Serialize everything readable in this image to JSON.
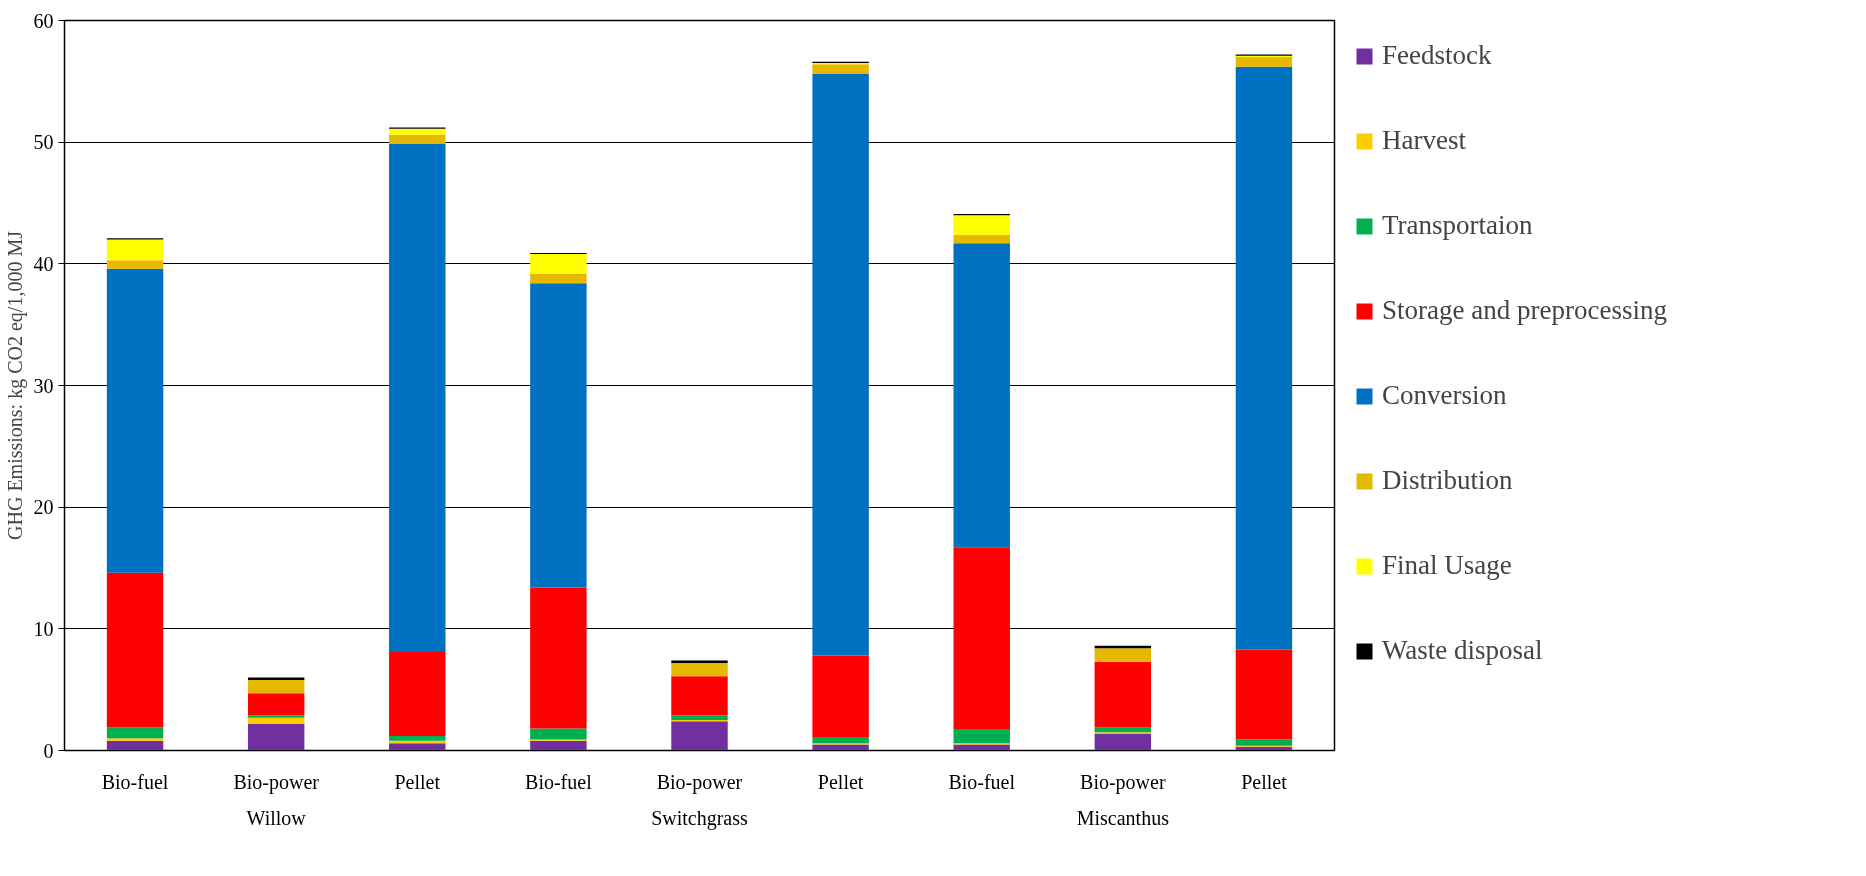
{
  "chart_data": {
    "type": "bar",
    "stacked": true,
    "ylabel": "GHG Emissions: kg CO2 eq/1,000 MJ",
    "categories": [
      "Bio-fuel",
      "Bio-power",
      "Pellet",
      "Bio-fuel",
      "Bio-power",
      "Pellet",
      "Bio-fuel",
      "Bio-power",
      "Pellet"
    ],
    "annotations": [
      "Willow",
      "Switchgrass",
      "Miscanthus"
    ],
    "series": [
      {
        "name": "Feedstock",
        "color": "#7030a0",
        "values": [
          0.8,
          2.2,
          0.6,
          0.8,
          2.4,
          0.5,
          0.5,
          1.4,
          0.3
        ]
      },
      {
        "name": "Harvest",
        "color": "#ffcc00",
        "values": [
          0.2,
          0.5,
          0.2,
          0.1,
          0.1,
          0.1,
          0.1,
          0.1,
          0.1
        ]
      },
      {
        "name": "Transportaion",
        "color": "#00b050",
        "values": [
          0.9,
          0.2,
          0.4,
          0.9,
          0.4,
          0.5,
          1.1,
          0.4,
          0.5
        ]
      },
      {
        "name": "Storage and preprocessing",
        "color": "#ff0000",
        "values": [
          12.7,
          1.8,
          6.9,
          11.6,
          3.2,
          6.7,
          15.0,
          5.4,
          7.4
        ]
      },
      {
        "name": "Conversion",
        "color": "#0070c0",
        "values": [
          25.0,
          0,
          41.8,
          25.0,
          0,
          47.8,
          25.0,
          0,
          47.9
        ]
      },
      {
        "name": "Distribution",
        "color": "#e6b800",
        "values": [
          0.7,
          1.1,
          0.7,
          0.8,
          1.1,
          0.8,
          0.7,
          1.1,
          0.8
        ]
      },
      {
        "name": "Final Usage",
        "color": "#ffff00",
        "values": [
          1.7,
          0,
          0.5,
          1.6,
          0,
          0.1,
          1.6,
          0,
          0.1
        ]
      },
      {
        "name": "Waste disposal",
        "color": "#000000",
        "values": [
          0.1,
          0.2,
          0.1,
          0.1,
          0.2,
          0.1,
          0.1,
          0.2,
          0.1
        ]
      }
    ],
    "ylim": [
      0,
      60
    ],
    "yticks": [
      0,
      10,
      20,
      30,
      40,
      50,
      60
    ],
    "grid": "y",
    "legend": "right"
  }
}
